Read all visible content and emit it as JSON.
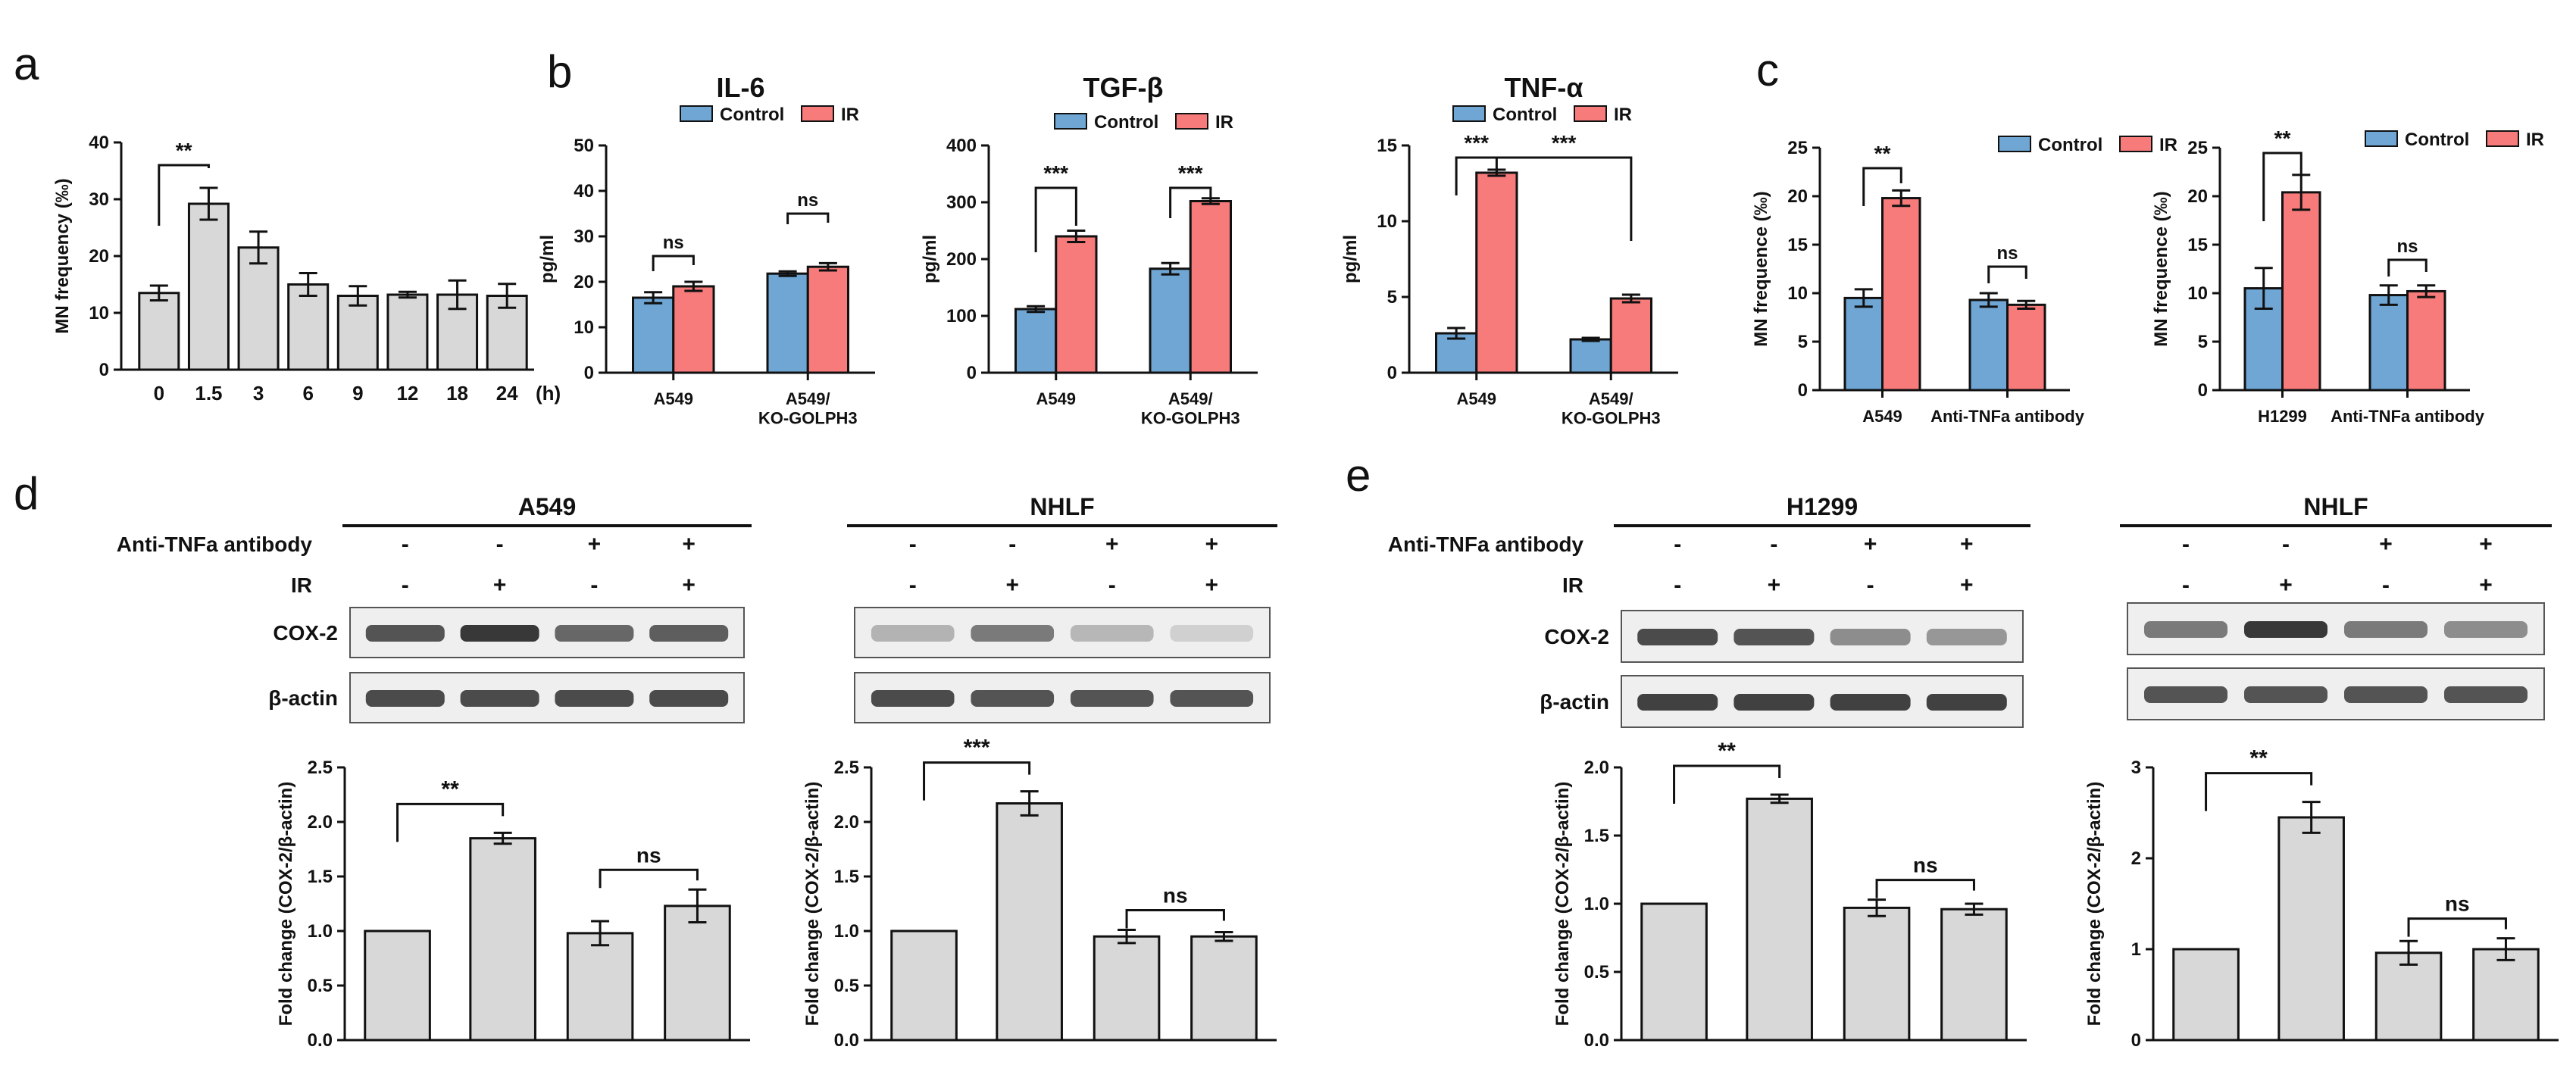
{
  "panel_letters": [
    "a",
    "b",
    "c",
    "d",
    "e"
  ],
  "legend_labels": {
    "control": "Control",
    "ir": "IR"
  },
  "colors": {
    "control": "#6fa6d4",
    "ir": "#f77b7b",
    "gray": "#d8d8d8",
    "axis": "#111111"
  },
  "chart_data": [
    {
      "id": "a",
      "type": "bar",
      "ylabel": "MN frequency (‰)",
      "xlabel": "(h)",
      "ylim": [
        0,
        40
      ],
      "yticks": [
        0,
        10,
        20,
        30,
        40
      ],
      "ytick_labels": [
        "0",
        "10",
        "20",
        "30",
        "40"
      ],
      "categories": [
        "0",
        "1.5",
        "3",
        "6",
        "9",
        "12",
        "18",
        "24"
      ],
      "values": [
        13.5,
        29.2,
        21.5,
        15,
        13,
        13.2,
        13.2,
        13
      ],
      "errors": [
        1.3,
        2.8,
        2.8,
        2,
        1.7,
        0.5,
        2.5,
        2.1
      ],
      "annotations": [
        {
          "from": 0,
          "to": 1,
          "label": "**"
        }
      ]
    },
    {
      "id": "b1",
      "type": "bar",
      "title": "IL-6",
      "ylabel": "pg/ml",
      "ylim": [
        0,
        50
      ],
      "yticks": [
        0,
        10,
        20,
        30,
        40,
        50
      ],
      "ytick_labels": [
        "0",
        "10",
        "20",
        "30",
        "40",
        "50"
      ],
      "categories": [
        "A549",
        "A549/ KO-GOLPH3"
      ],
      "series": [
        {
          "name": "Control",
          "values": [
            16.5,
            21.8
          ],
          "errors": [
            1.2,
            0.5
          ]
        },
        {
          "name": "IR",
          "values": [
            19,
            23.3
          ],
          "errors": [
            1,
            0.8
          ]
        }
      ],
      "annotations": [
        {
          "label": "ns"
        },
        {
          "label": "ns"
        }
      ]
    },
    {
      "id": "b2",
      "type": "bar",
      "title": "TGF-β",
      "ylabel": "pg/ml",
      "ylim": [
        0,
        400
      ],
      "yticks": [
        0,
        100,
        200,
        300,
        400
      ],
      "ytick_labels": [
        "0",
        "100",
        "200",
        "300",
        "400"
      ],
      "categories": [
        "A549",
        "A549/ KO-GOLPH3"
      ],
      "series": [
        {
          "name": "Control",
          "values": [
            112,
            183
          ],
          "errors": [
            5,
            10
          ]
        },
        {
          "name": "IR",
          "values": [
            240,
            302
          ],
          "errors": [
            10,
            5
          ]
        }
      ],
      "annotations": [
        {
          "label": "***"
        },
        {
          "label": "***"
        }
      ]
    },
    {
      "id": "b3",
      "type": "bar",
      "title": "TNF-α",
      "ylabel": "pg/ml",
      "ylim": [
        0,
        15
      ],
      "yticks": [
        0,
        5,
        10,
        15
      ],
      "ytick_labels": [
        "0",
        "5",
        "10",
        "15"
      ],
      "categories": [
        "A549",
        "A549/ KO-GOLPH3"
      ],
      "series": [
        {
          "name": "Control",
          "values": [
            2.6,
            2.2
          ],
          "errors": [
            0.35,
            0.1
          ]
        },
        {
          "name": "IR",
          "values": [
            13.2,
            4.9
          ],
          "errors": [
            0.2,
            0.25
          ]
        }
      ],
      "annotations": [
        {
          "label": "***"
        },
        {
          "label": "***"
        }
      ]
    },
    {
      "id": "c1",
      "type": "bar",
      "ylabel": "MN frequence (‰)",
      "ylim": [
        0,
        25
      ],
      "yticks": [
        0,
        5,
        10,
        15,
        20,
        25
      ],
      "ytick_labels": [
        "0",
        "5",
        "10",
        "15",
        "20",
        "25"
      ],
      "categories": [
        "A549",
        "Anti-TNFa antibody"
      ],
      "series": [
        {
          "name": "Control",
          "values": [
            9.5,
            9.3
          ],
          "errors": [
            0.9,
            0.7
          ]
        },
        {
          "name": "IR",
          "values": [
            19.8,
            8.8
          ],
          "errors": [
            0.8,
            0.4
          ]
        }
      ],
      "annotations": [
        {
          "label": "**"
        },
        {
          "label": "ns"
        }
      ]
    },
    {
      "id": "c2",
      "type": "bar",
      "ylabel": "MN frequence (‰)",
      "ylim": [
        0,
        25
      ],
      "yticks": [
        0,
        5,
        10,
        15,
        20,
        25
      ],
      "ytick_labels": [
        "0",
        "5",
        "10",
        "15",
        "20",
        "25"
      ],
      "categories": [
        "H1299",
        "Anti-TNFa antibody"
      ],
      "series": [
        {
          "name": "Control",
          "values": [
            10.5,
            9.8
          ],
          "errors": [
            2.1,
            1
          ]
        },
        {
          "name": "IR",
          "values": [
            20.4,
            10.2
          ],
          "errors": [
            1.8,
            0.6
          ]
        }
      ],
      "annotations": [
        {
          "label": "**"
        },
        {
          "label": "ns"
        }
      ]
    },
    {
      "id": "d1",
      "type": "bar",
      "ylabel": "Fold change (COX-2/β-actin)",
      "ylim": [
        0,
        2.5
      ],
      "yticks": [
        0,
        0.5,
        1,
        1.5,
        2,
        2.5
      ],
      "ytick_labels": [
        "0.0",
        "0.5",
        "1.0",
        "1.5",
        "2.0",
        "2.5"
      ],
      "values": [
        1,
        1.85,
        0.98,
        1.23
      ],
      "errors": [
        0,
        0.05,
        0.11,
        0.15
      ],
      "annotations": [
        {
          "from": 0,
          "to": 1,
          "label": "**"
        },
        {
          "from": 2,
          "to": 3,
          "label": "ns"
        }
      ]
    },
    {
      "id": "d2",
      "type": "bar",
      "ylabel": "Fold change (COX-2/β-actin)",
      "ylim": [
        0,
        2.5
      ],
      "yticks": [
        0,
        0.5,
        1,
        1.5,
        2,
        2.5
      ],
      "ytick_labels": [
        "0.0",
        "0.5",
        "1.0",
        "1.5",
        "2.0",
        "2.5"
      ],
      "values": [
        1,
        2.17,
        0.95,
        0.95
      ],
      "errors": [
        0,
        0.11,
        0.06,
        0.04
      ],
      "annotations": [
        {
          "from": 0,
          "to": 1,
          "label": "***"
        },
        {
          "from": 2,
          "to": 3,
          "label": "ns"
        }
      ]
    },
    {
      "id": "e1",
      "type": "bar",
      "ylabel": "Fold change (COX-2/β-actin)",
      "ylim": [
        0,
        2
      ],
      "yticks": [
        0,
        0.5,
        1,
        1.5,
        2
      ],
      "ytick_labels": [
        "0.0",
        "0.5",
        "1.0",
        "1.5",
        "2.0"
      ],
      "values": [
        1,
        1.77,
        0.97,
        0.96
      ],
      "errors": [
        0,
        0.03,
        0.06,
        0.04
      ],
      "annotations": [
        {
          "from": 0,
          "to": 1,
          "label": "**"
        },
        {
          "from": 2,
          "to": 3,
          "label": "ns"
        }
      ]
    },
    {
      "id": "e2",
      "type": "bar",
      "ylabel": "Fold change (COX-2/β-actin)",
      "ylim": [
        0,
        3
      ],
      "yticks": [
        0,
        1,
        2,
        3
      ],
      "ytick_labels": [
        "0",
        "1",
        "2",
        "3"
      ],
      "values": [
        1,
        2.45,
        0.96,
        1
      ],
      "errors": [
        0,
        0.17,
        0.13,
        0.12
      ],
      "annotations": [
        {
          "from": 0,
          "to": 1,
          "label": "**"
        },
        {
          "from": 2,
          "to": 3,
          "label": "ns"
        }
      ]
    }
  ],
  "western_blots": [
    {
      "id": "d1",
      "title": "A549",
      "treatment_label": "Anti-TNFa antibody",
      "ir_label": "IR",
      "anti_tnfa": [
        "-",
        "-",
        "+",
        "+"
      ],
      "ir": [
        "-",
        "+",
        "-",
        "+"
      ],
      "bands": [
        {
          "label": "COX-2",
          "intensity": [
            0.8,
            0.95,
            0.7,
            0.75
          ]
        },
        {
          "label": "β-actin",
          "intensity": [
            0.85,
            0.85,
            0.85,
            0.85
          ]
        }
      ]
    },
    {
      "id": "d2",
      "title": "NHLF",
      "anti_tnfa": [
        "-",
        "-",
        "+",
        "+"
      ],
      "ir": [
        "-",
        "+",
        "-",
        "+"
      ],
      "bands": [
        {
          "intensity": [
            0.3,
            0.6,
            0.28,
            0.15
          ]
        },
        {
          "intensity": [
            0.85,
            0.8,
            0.8,
            0.8
          ]
        }
      ]
    },
    {
      "id": "e1",
      "title": "H1299",
      "treatment_label": "Anti-TNFa antibody",
      "ir_label": "IR",
      "anti_tnfa": [
        "-",
        "-",
        "+",
        "+"
      ],
      "ir": [
        "-",
        "+",
        "-",
        "+"
      ],
      "bands": [
        {
          "label": "COX-2",
          "intensity": [
            0.85,
            0.8,
            0.5,
            0.45
          ]
        },
        {
          "label": "β-actin",
          "intensity": [
            0.9,
            0.9,
            0.9,
            0.9
          ]
        }
      ]
    },
    {
      "id": "e2",
      "title": "NHLF",
      "anti_tnfa": [
        "-",
        "-",
        "+",
        "+"
      ],
      "ir": [
        "-",
        "+",
        "-",
        "+"
      ],
      "bands": [
        {
          "intensity": [
            0.6,
            0.95,
            0.6,
            0.5
          ]
        },
        {
          "intensity": [
            0.8,
            0.8,
            0.8,
            0.8
          ]
        }
      ]
    }
  ]
}
